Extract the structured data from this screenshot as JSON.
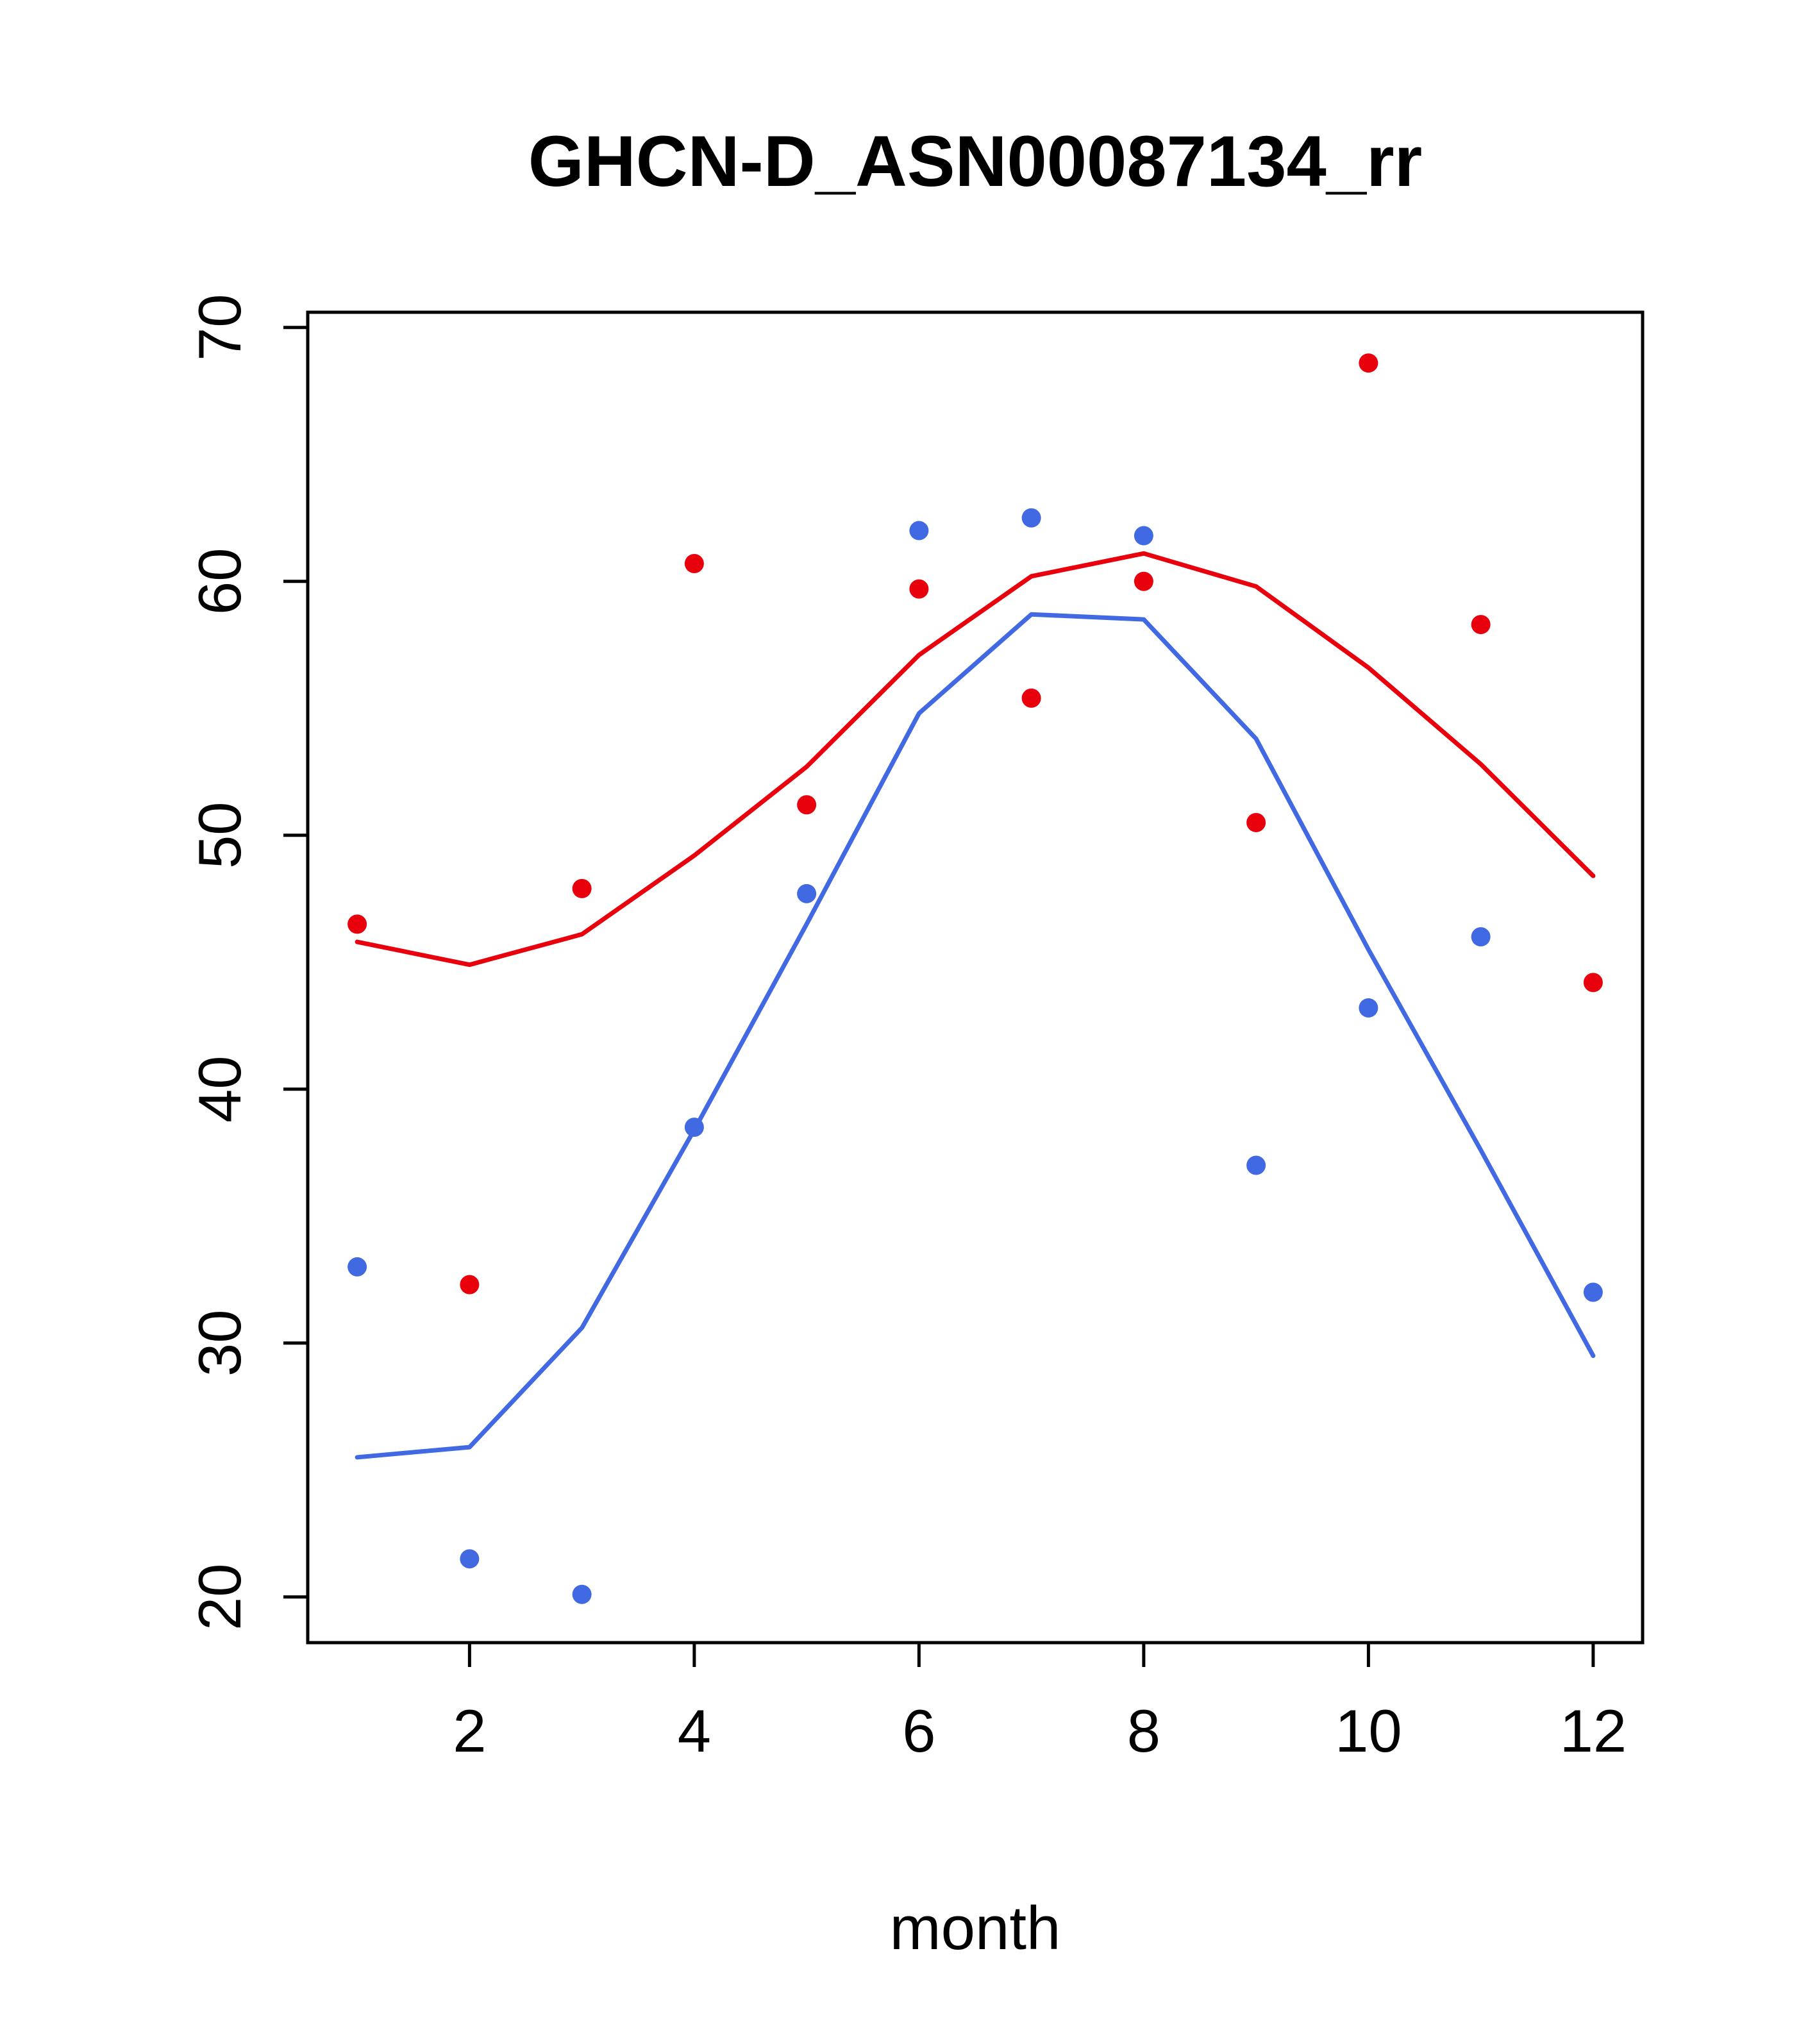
{
  "chart_data": {
    "type": "scatter",
    "title": "GHCN-D_ASN00087134_rr",
    "xlabel": "month",
    "ylabel": "",
    "xlim": [
      0.56,
      12.44
    ],
    "ylim": [
      18.2,
      70.6
    ],
    "x_ticks": [
      2,
      4,
      6,
      8,
      10,
      12
    ],
    "y_ticks": [
      20,
      30,
      40,
      50,
      60,
      70
    ],
    "x": [
      1,
      2,
      3,
      4,
      5,
      6,
      7,
      8,
      9,
      10,
      11,
      12
    ],
    "grid": false,
    "legend_position": "none",
    "colors": {
      "red": "#e8000d",
      "blue": "#4169e1",
      "axis": "#000000"
    },
    "series": [
      {
        "name": "red-points",
        "type": "points",
        "color": "#e8000d",
        "values": [
          46.5,
          32.3,
          47.9,
          60.7,
          51.2,
          59.7,
          55.4,
          60.0,
          50.5,
          68.6,
          58.3,
          44.2
        ]
      },
      {
        "name": "red-line",
        "type": "line",
        "color": "#e8000d",
        "values": [
          45.8,
          44.9,
          46.1,
          49.2,
          52.7,
          57.1,
          60.2,
          61.1,
          59.8,
          56.6,
          52.8,
          48.4
        ]
      },
      {
        "name": "blue-points",
        "type": "points",
        "color": "#4169e1",
        "values": [
          33.0,
          21.5,
          20.1,
          38.5,
          47.7,
          62.0,
          62.5,
          61.8,
          37.0,
          43.2,
          46.0,
          32.0
        ]
      },
      {
        "name": "blue-line",
        "type": "line",
        "color": "#4169e1",
        "values": [
          25.5,
          25.9,
          30.6,
          38.4,
          46.5,
          54.8,
          58.7,
          58.5,
          53.8,
          45.5,
          37.6,
          29.5
        ]
      }
    ]
  }
}
